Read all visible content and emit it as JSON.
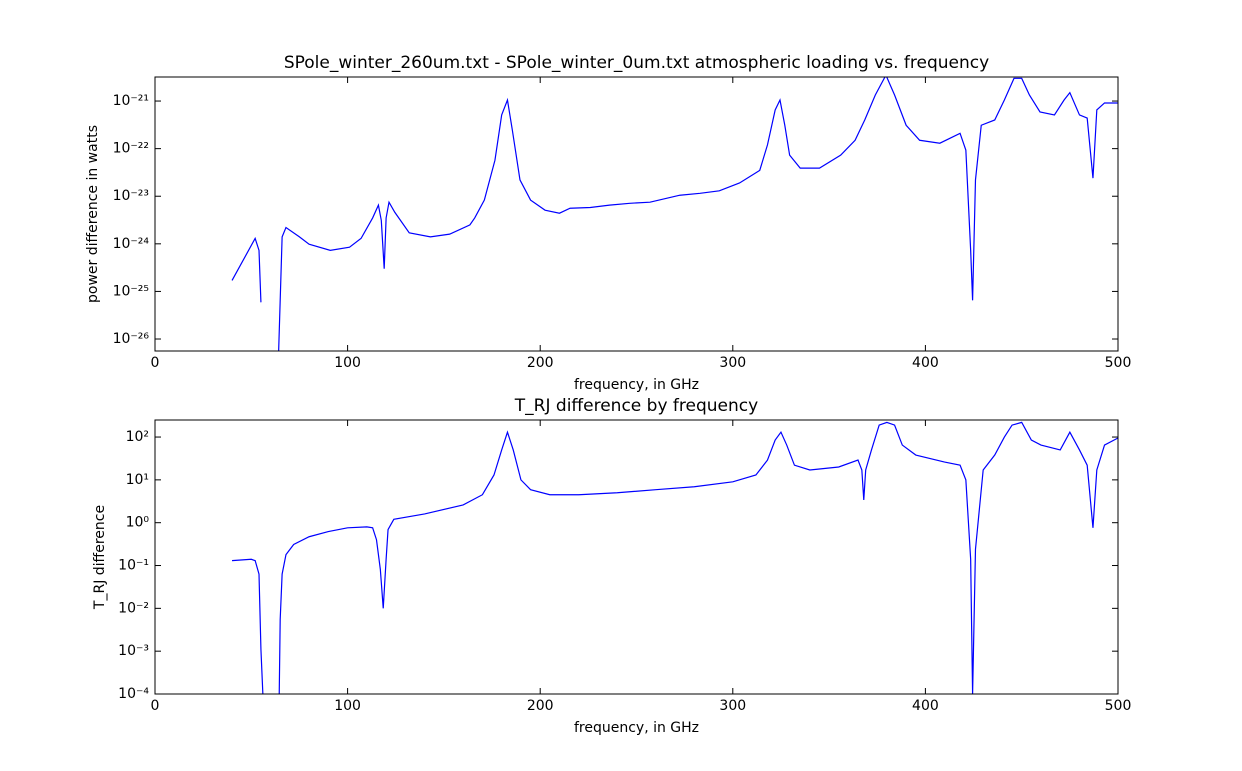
{
  "chart_data": [
    {
      "type": "line",
      "title": "SPole_winter_260um.txt - SPole_winter_0um.txt atmospheric loading vs. frequency",
      "xlabel": "frequency, in GHz",
      "ylabel": "power difference in watts",
      "yscale": "log",
      "x": [
        40,
        52,
        54,
        55,
        60,
        64,
        66,
        68,
        75,
        80,
        91,
        101,
        107,
        113,
        116,
        117.5,
        119,
        120,
        121.5,
        124.5,
        132,
        143,
        153,
        163.5,
        166,
        171,
        176.5,
        180,
        183,
        185.5,
        189.5,
        195,
        202.5,
        210,
        215.5,
        226,
        236,
        246.5,
        257,
        272.5,
        283,
        293,
        303.5,
        314,
        318,
        322,
        324.5,
        327,
        329.5,
        335,
        345,
        356,
        363.5,
        368.5,
        374,
        379.5,
        384,
        390,
        397,
        407.5,
        418,
        421,
        423.5,
        424.5,
        426,
        429,
        436,
        441,
        446,
        450,
        454,
        459.5,
        467,
        472,
        475,
        480,
        484,
        487,
        489,
        493,
        500
      ],
      "series": [
        {
          "color": "#0000ff",
          "values": [
            1.7e-25,
            1.3e-24,
            7.3e-25,
            5.9e-26,
            null,
            3e-27,
            1.4e-24,
            2.2e-24,
            1.4e-24,
            9.8e-25,
            7.3e-25,
            8.5e-25,
            1.3e-24,
            3.5e-24,
            6.5e-24,
            3.1e-24,
            3e-25,
            3.5e-24,
            7.5e-24,
            4.6e-24,
            1.7e-24,
            1.4e-24,
            1.6e-24,
            2.5e-24,
            3.5e-24,
            8.3e-24,
            5.7e-23,
            5.1e-22,
            1.05e-21,
            2.5e-22,
            2.2e-23,
            8.3e-24,
            5.1e-24,
            4.4e-24,
            5.6e-24,
            5.8e-24,
            6.5e-24,
            7.1e-24,
            7.5e-24,
            1.05e-23,
            1.15e-23,
            1.3e-23,
            1.9e-23,
            3.5e-23,
            1.2e-22,
            6.5e-22,
            1.05e-21,
            3.1e-22,
            7.3e-23,
            3.9e-23,
            3.9e-23,
            7.3e-23,
            1.5e-22,
            4e-22,
            1.34e-21,
            3.5e-21,
            1.34e-21,
            3.1e-22,
            1.5e-22,
            1.3e-22,
            2.1e-22,
            9.3e-23,
            7.3e-25,
            6.5e-26,
            2.2e-23,
            3.1e-22,
            4e-22,
            1.05e-21,
            3e-21,
            3e-21,
            1.34e-21,
            5.9e-22,
            5.1e-22,
            1.05e-21,
            1.5e-21,
            5.1e-22,
            4.4e-22,
            2.4e-23,
            6.5e-22,
            9.1e-22,
            9.1e-22
          ]
        }
      ],
      "xlim": [
        0,
        500
      ],
      "xticks": [
        0,
        100,
        200,
        300,
        400,
        500
      ],
      "ylim": [
        5.6e-27,
        3.2e-21
      ],
      "yticks": [
        {
          "value": 1e-26,
          "label": "10⁻²⁶"
        },
        {
          "value": 1e-25,
          "label": "10⁻²⁵"
        },
        {
          "value": 1e-24,
          "label": "10⁻²⁴"
        },
        {
          "value": 1e-23,
          "label": "10⁻²³"
        },
        {
          "value": 1e-22,
          "label": "10⁻²²"
        },
        {
          "value": 1e-21,
          "label": "10⁻²¹"
        }
      ]
    },
    {
      "type": "line",
      "title": "T_RJ difference by frequency",
      "xlabel": "frequency, in GHz",
      "ylabel": "T_RJ difference",
      "yscale": "log",
      "x": [
        40,
        50,
        52,
        54,
        55,
        56,
        57,
        63,
        64.5,
        65,
        66,
        68,
        72,
        80,
        90,
        100,
        110,
        113,
        115,
        117,
        118.5,
        120,
        121,
        124,
        140,
        160,
        170,
        176,
        180,
        183,
        186,
        190,
        195,
        205,
        220,
        240,
        260,
        280,
        300,
        312,
        318,
        322,
        325,
        328,
        332,
        340,
        355,
        365,
        367,
        368,
        369,
        372,
        376,
        380,
        384,
        388,
        395,
        410,
        418,
        421,
        423.5,
        424.5,
        426,
        430,
        436,
        441,
        445,
        450,
        455,
        460,
        470,
        475,
        480,
        484,
        487,
        489,
        493,
        500
      ],
      "series": [
        {
          "color": "#0000ff",
          "values": [
            0.13,
            0.14,
            0.13,
            0.063,
            0.0011,
            0.0001,
            3e-05,
            3e-05,
            0.0001,
            0.0055,
            0.063,
            0.18,
            0.31,
            0.47,
            0.62,
            0.76,
            0.8,
            0.76,
            0.4,
            0.081,
            0.01,
            0.14,
            0.69,
            1.2,
            1.6,
            2.6,
            4.5,
            13,
            50,
            130,
            50,
            10,
            5.9,
            4.5,
            4.5,
            5.0,
            5.9,
            6.9,
            9.0,
            13,
            29,
            85,
            130,
            65,
            22,
            17,
            20,
            29,
            17,
            3.4,
            17,
            50,
            190,
            220,
            190,
            65,
            38,
            26,
            22,
            10,
            0.14,
            0.0001,
            0.24,
            17,
            38,
            100,
            190,
            220,
            85,
            65,
            50,
            130,
            50,
            22,
            0.76,
            17,
            65,
            95
          ]
        }
      ],
      "xlim": [
        0,
        500
      ],
      "xticks": [
        0,
        100,
        200,
        300,
        400,
        500
      ],
      "ylim": [
        0.0001,
        250
      ],
      "yticks": [
        {
          "value": 0.0001,
          "label": "10⁻⁴"
        },
        {
          "value": 0.001,
          "label": "10⁻³"
        },
        {
          "value": 0.01,
          "label": "10⁻²"
        },
        {
          "value": 0.1,
          "label": "10⁻¹"
        },
        {
          "value": 1,
          "label": "10⁰"
        },
        {
          "value": 10,
          "label": "10¹"
        },
        {
          "value": 100,
          "label": "10²"
        }
      ]
    }
  ]
}
